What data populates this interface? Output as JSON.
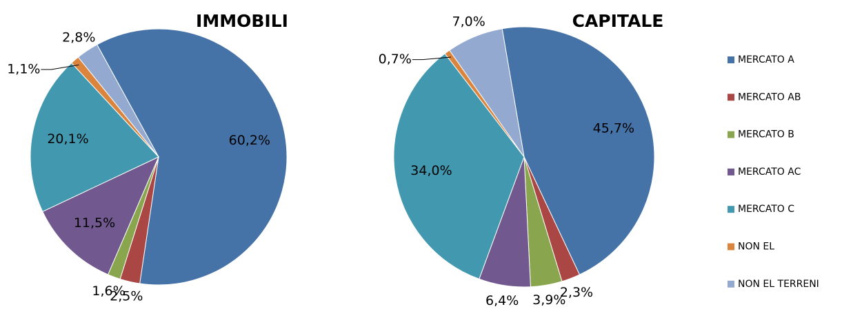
{
  "chart_data": [
    {
      "type": "pie",
      "title": "IMMOBILI",
      "categories": [
        "MERCATO A",
        "MERCATO AB",
        "MERCATO B",
        "MERCATO AC",
        "MERCATO C",
        "NON EL",
        "NON EL TERRENI"
      ],
      "values": [
        60.2,
        2.5,
        1.6,
        11.5,
        20.1,
        1.1,
        2.8
      ],
      "value_labels": [
        "60,2%",
        "2,5%",
        "1,6%",
        "11,5%",
        "20,1%",
        "1,1%",
        "2,8%"
      ],
      "colors": [
        "#4572a7",
        "#aa4643",
        "#89a54e",
        "#71588f",
        "#4198af",
        "#db843d",
        "#93a9cf"
      ],
      "legend": "right"
    },
    {
      "type": "pie",
      "title": "CAPITALE",
      "categories": [
        "MERCATO A",
        "MERCATO AB",
        "MERCATO B",
        "MERCATO AC",
        "MERCATO C",
        "NON EL",
        "NON EL TERRENI"
      ],
      "values": [
        45.7,
        2.3,
        3.9,
        6.4,
        34.0,
        0.7,
        7.0
      ],
      "value_labels": [
        "45,7%",
        "2,3%",
        "3,9%",
        "6,4%",
        "34,0%",
        "0,7%",
        "7,0%"
      ],
      "colors": [
        "#4572a7",
        "#aa4643",
        "#89a54e",
        "#71588f",
        "#4198af",
        "#db843d",
        "#93a9cf"
      ]
    }
  ]
}
